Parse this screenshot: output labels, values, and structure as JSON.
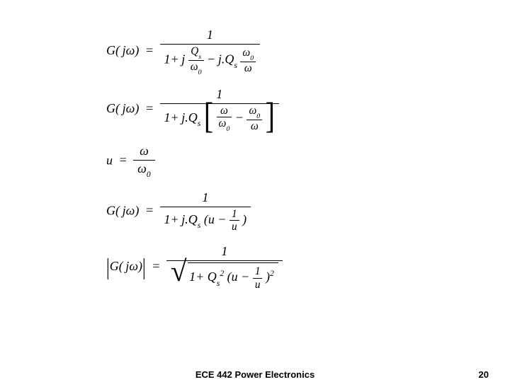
{
  "footer": {
    "title": "ECE 442 Power Electronics",
    "page": "20"
  },
  "eq": {
    "G": "G",
    "j": "j",
    "omega": "ω",
    "Qs": "Q",
    "s": "s",
    "omega0": "ω",
    "zero": "0",
    "one": "1",
    "u": "u",
    "plus": "+",
    "minus": "−",
    "eq": "=",
    "dot": ".",
    "lparen": "(",
    "rparen": ")",
    "two": "2"
  }
}
